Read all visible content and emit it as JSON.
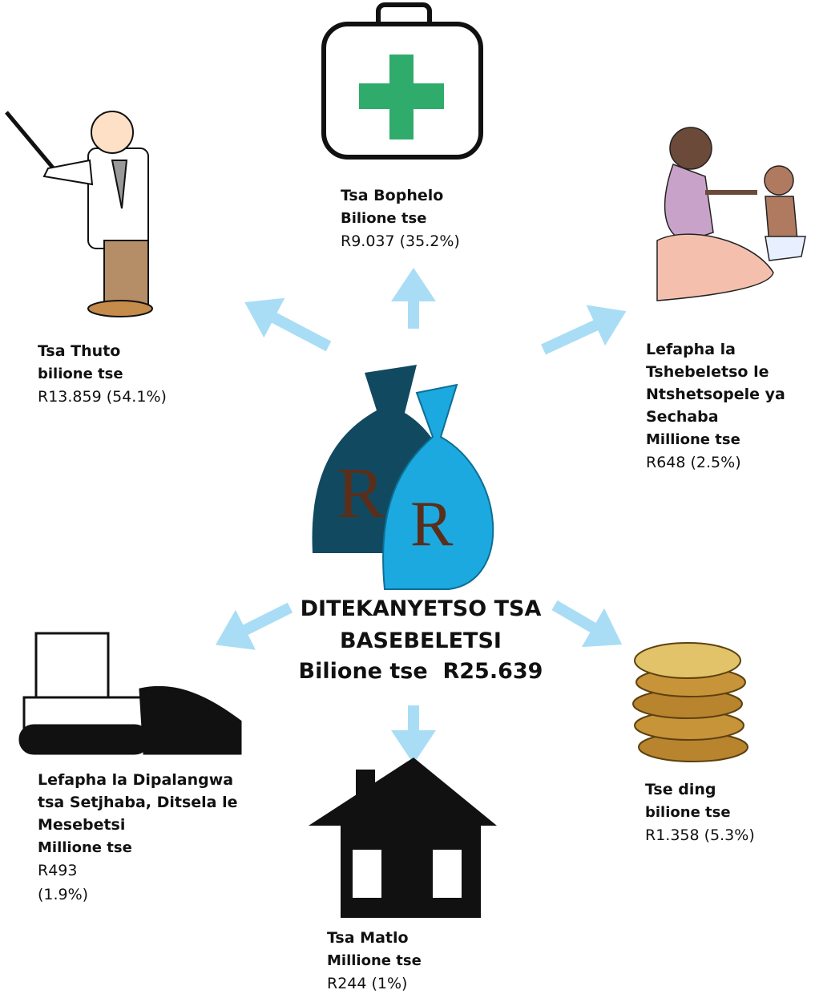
{
  "center": {
    "lines": [
      "DITEKANYETSO TSA",
      "BASEBELETSI",
      "Bilione tse  R25.639"
    ],
    "bag_letter": "R"
  },
  "nodes": [
    {
      "heading": [
        "Tsa Bophelo"
      ],
      "unit": "Bilione tse",
      "amount": [
        "R9.037 (35.2%)"
      ]
    },
    {
      "heading": [
        "Tsa Thuto"
      ],
      "unit": "bilione tse",
      "amount": [
        "R13.859 (54.1%)"
      ]
    },
    {
      "heading": [
        "Lefapha la",
        "Tshebeletso le",
        "Ntshetsopele ya",
        "Sechaba"
      ],
      "unit": "Millione tse",
      "amount": [
        "R648 (2.5%)"
      ]
    },
    {
      "heading": [
        "Lefapha la Dipalangwa",
        "tsa Setjhaba, Ditsela le",
        "Mesebetsi"
      ],
      "unit": "Millione tse",
      "amount": [
        "R493",
        "(1.9%)"
      ]
    },
    {
      "heading": [
        "Tsa Matlo"
      ],
      "unit": "Millione tse",
      "amount": [
        "R244 (1%)"
      ]
    },
    {
      "heading": [
        "Tse ding"
      ],
      "unit": "bilione tse",
      "amount": [
        "R1.358 (5.3%)"
      ]
    }
  ]
}
